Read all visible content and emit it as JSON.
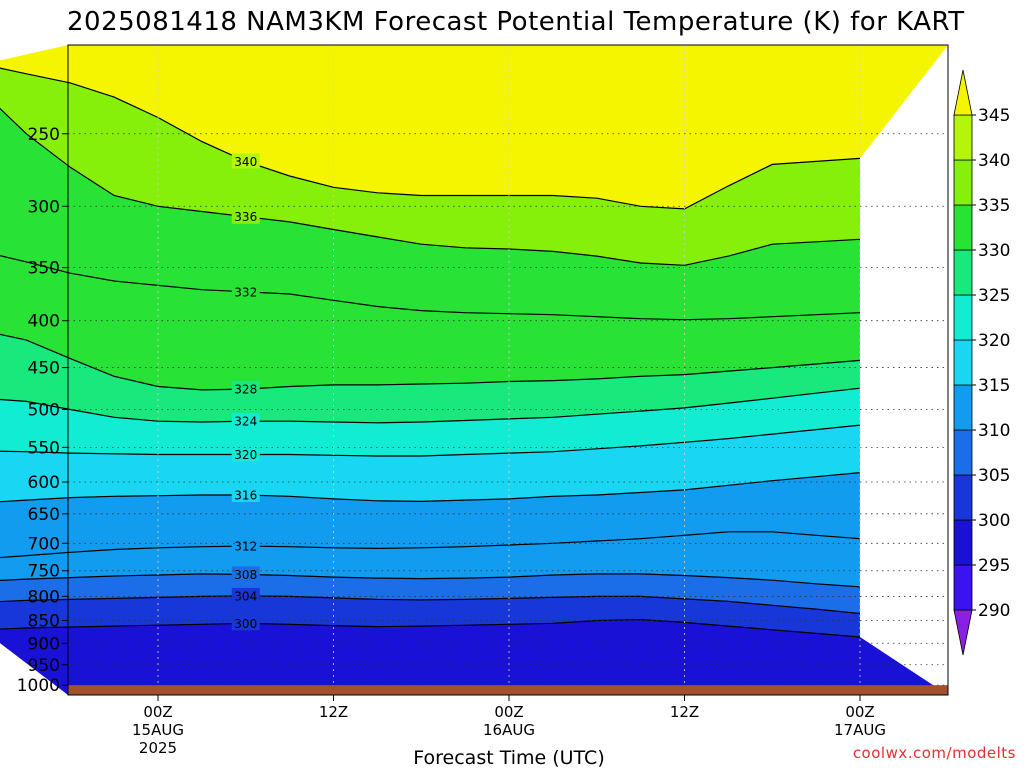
{
  "title": "2025081418 NAM3KM Forecast Potential Temperature (K) for KART",
  "credit": "coolwx.com/modelts",
  "chart_data": {
    "type": "contour",
    "title": "2025081418 NAM3KM Forecast Potential Temperature (K) for KART",
    "xlabel": "Forecast Time (UTC)",
    "ylabel": "",
    "units": "K",
    "y_scale": "log-pressure",
    "y_reversed": true,
    "y_range_hpa": [
      200,
      1025
    ],
    "y_ticks": [
      250,
      300,
      350,
      400,
      450,
      500,
      550,
      600,
      650,
      700,
      750,
      800,
      850,
      900,
      950,
      1000
    ],
    "x_range_hours": [
      -6,
      54
    ],
    "x_ticks": [
      {
        "hour": 6,
        "lines": [
          "00Z",
          "15AUG",
          "2025"
        ]
      },
      {
        "hour": 18,
        "lines": [
          "12Z"
        ]
      },
      {
        "hour": 30,
        "lines": [
          "00Z",
          "16AUG"
        ]
      },
      {
        "hour": 42,
        "lines": [
          "12Z"
        ]
      },
      {
        "hour": 54,
        "lines": [
          "00Z",
          "17AUG"
        ]
      }
    ],
    "grid": true,
    "colorbar": {
      "levels": [
        290,
        295,
        300,
        305,
        310,
        315,
        320,
        325,
        330,
        335,
        340,
        345
      ],
      "labels": [
        "290",
        "295",
        "300",
        "305",
        "310",
        "315",
        "320",
        "325",
        "330",
        "335",
        "340",
        "345"
      ],
      "colors": [
        "#8a1fe6",
        "#3b12f0",
        "#1a11d6",
        "#1737d8",
        "#1c6ee8",
        "#129cf0",
        "#19d6f2",
        "#12ecd2",
        "#19e87c",
        "#28e335",
        "#86f00a",
        "#b4f50a",
        "#f6f500"
      ]
    },
    "isentropes_hpa": [
      {
        "theta": 300,
        "p": [
          870,
          866,
          864,
          862,
          860,
          858,
          856,
          858,
          861,
          863,
          862,
          860,
          858,
          856,
          850,
          848,
          854,
          862,
          870,
          878,
          886
        ]
      },
      {
        "theta": 304,
        "p": [
          812,
          808,
          806,
          804,
          802,
          800,
          799,
          800,
          803,
          806,
          807,
          806,
          804,
          802,
          800,
          800,
          805,
          810,
          818,
          826,
          835
        ]
      },
      {
        "theta": 308,
        "p": [
          770,
          766,
          763,
          760,
          758,
          756,
          757,
          759,
          762,
          764,
          765,
          764,
          762,
          758,
          756,
          756,
          759,
          763,
          768,
          775,
          781
        ]
      },
      {
        "theta": 312,
        "p": [
          728,
          722,
          716,
          711,
          708,
          706,
          705,
          706,
          708,
          709,
          708,
          706,
          703,
          700,
          696,
          692,
          686,
          680,
          680,
          686,
          692
        ]
      },
      {
        "theta": 316,
        "p": [
          632,
          628,
          624,
          622,
          621,
          620,
          620,
          622,
          626,
          629,
          630,
          628,
          626,
          622,
          620,
          616,
          612,
          605,
          598,
          592,
          586
        ]
      },
      {
        "theta": 320,
        "p": [
          555,
          556,
          558,
          559,
          560,
          560,
          560,
          560,
          561,
          562,
          562,
          560,
          558,
          556,
          552,
          548,
          543,
          538,
          532,
          526,
          520
        ]
      },
      {
        "theta": 324,
        "p": [
          486,
          490,
          500,
          510,
          515,
          516,
          515,
          515,
          516,
          517,
          516,
          514,
          512,
          510,
          506,
          502,
          498,
          492,
          486,
          480,
          474
        ]
      },
      {
        "theta": 328,
        "p": [
          410,
          420,
          440,
          460,
          472,
          476,
          475,
          472,
          470,
          470,
          469,
          468,
          466,
          465,
          463,
          460,
          458,
          454,
          450,
          446,
          442
        ]
      },
      {
        "theta": 332,
        "p": [
          336,
          345,
          355,
          362,
          366,
          370,
          372,
          374,
          380,
          386,
          390,
          392,
          393,
          394,
          396,
          398,
          399,
          398,
          396,
          394,
          392
        ]
      },
      {
        "theta": 336,
        "p": [
          225,
          250,
          272,
          292,
          300,
          304,
          308,
          312,
          318,
          324,
          330,
          333,
          334,
          336,
          340,
          346,
          348,
          340,
          330,
          328,
          326
        ]
      },
      {
        "theta": 340,
        "p": [
          210,
          215,
          220,
          228,
          240,
          255,
          268,
          278,
          286,
          290,
          292,
          292,
          292,
          292,
          294,
          300,
          302,
          285,
          270,
          268,
          266
        ]
      }
    ],
    "surface_hpa": 1000
  }
}
